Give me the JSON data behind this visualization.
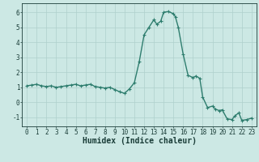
{
  "x_values": [
    0,
    0.5,
    1,
    1.5,
    2,
    2.5,
    3,
    3.5,
    4,
    4.5,
    5,
    5.5,
    6,
    6.5,
    7,
    7.5,
    8,
    8.5,
    9,
    9.5,
    10,
    10.5,
    11,
    11.5,
    12,
    12.5,
    13,
    13.3,
    13.7,
    14,
    14.5,
    15,
    15.2,
    15.5,
    16,
    16.5,
    17,
    17.3,
    17.7,
    18,
    18.5,
    19,
    19.3,
    19.7,
    20,
    20.5,
    21,
    21.3,
    21.7,
    22,
    22.5,
    23
  ],
  "y_values": [
    1.1,
    1.15,
    1.2,
    1.1,
    1.05,
    1.1,
    1.0,
    1.05,
    1.1,
    1.15,
    1.2,
    1.1,
    1.15,
    1.2,
    1.05,
    1.0,
    0.95,
    1.0,
    0.85,
    0.7,
    0.6,
    0.9,
    1.3,
    2.7,
    4.5,
    5.0,
    5.5,
    5.2,
    5.4,
    6.0,
    6.05,
    5.9,
    5.7,
    5.0,
    3.2,
    1.8,
    1.65,
    1.75,
    1.6,
    0.35,
    -0.35,
    -0.25,
    -0.45,
    -0.55,
    -0.5,
    -1.1,
    -1.15,
    -0.9,
    -0.7,
    -1.2,
    -1.15,
    -1.05
  ],
  "line_color": "#2e7d6e",
  "marker": "+",
  "marker_size": 2.5,
  "marker_linewidth": 0.8,
  "bg_color": "#cce8e4",
  "grid_color": "#afd0cc",
  "xlabel": "Humidex (Indice chaleur)",
  "xlim": [
    -0.5,
    23.5
  ],
  "ylim": [
    -1.6,
    6.6
  ],
  "yticks": [
    -1,
    0,
    1,
    2,
    3,
    4,
    5,
    6
  ],
  "xticks": [
    0,
    1,
    2,
    3,
    4,
    5,
    6,
    7,
    8,
    9,
    10,
    11,
    12,
    13,
    14,
    15,
    16,
    17,
    18,
    19,
    20,
    21,
    22,
    23
  ],
  "font_color": "#1a3d38",
  "tick_fontsize": 5.5,
  "xlabel_fontsize": 7.0,
  "linewidth": 1.0
}
